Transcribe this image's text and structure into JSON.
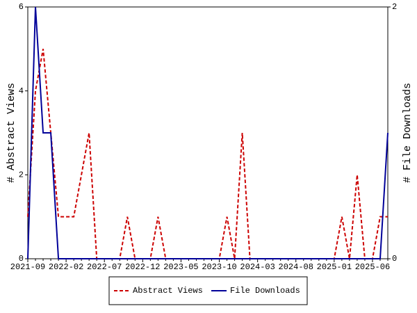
{
  "chart_data": {
    "type": "line",
    "categories": [
      "2021-09",
      null,
      null,
      null,
      null,
      "2022-02",
      null,
      null,
      null,
      null,
      "2022-07",
      null,
      null,
      null,
      null,
      "2022-12",
      null,
      null,
      null,
      null,
      "2023-05",
      null,
      null,
      null,
      null,
      "2023-10",
      null,
      null,
      null,
      null,
      "2024-03",
      null,
      null,
      null,
      null,
      "2024-08",
      null,
      null,
      null,
      null,
      "2025-01",
      null,
      null,
      null,
      null,
      "2025-06",
      null,
      null
    ],
    "series": [
      {
        "name": "Abstract Views",
        "color": "#cc0000",
        "axis": "y",
        "values": [
          1,
          4,
          5,
          3,
          1,
          1,
          1,
          2,
          3,
          0,
          0,
          0,
          0,
          1,
          0,
          0,
          0,
          1,
          0,
          0,
          0,
          0,
          0,
          0,
          0,
          0,
          1,
          0,
          3,
          0,
          0,
          0,
          0,
          0,
          0,
          0,
          0,
          0,
          0,
          0,
          0,
          1,
          0,
          2,
          0,
          0,
          1,
          1
        ]
      },
      {
        "name": "File Downloads",
        "color": "#000099",
        "axis": "y2",
        "values": [
          0,
          2,
          1,
          1,
          0,
          0,
          0,
          0,
          0,
          0,
          0,
          0,
          0,
          0,
          0,
          0,
          0,
          0,
          0,
          0,
          0,
          0,
          0,
          0,
          0,
          0,
          0,
          0,
          0,
          0,
          0,
          0,
          0,
          0,
          0,
          0,
          0,
          0,
          0,
          0,
          0,
          0,
          0,
          0,
          0,
          0,
          0,
          1
        ]
      }
    ],
    "ylabel": "# Abstract Views",
    "y2label": "# File Downloads",
    "ylim": [
      0,
      6
    ],
    "yticks": [
      0,
      2,
      4,
      6
    ],
    "y2lim": [
      0,
      2
    ],
    "y2ticks": [
      0,
      2
    ],
    "legend": "bottom"
  }
}
